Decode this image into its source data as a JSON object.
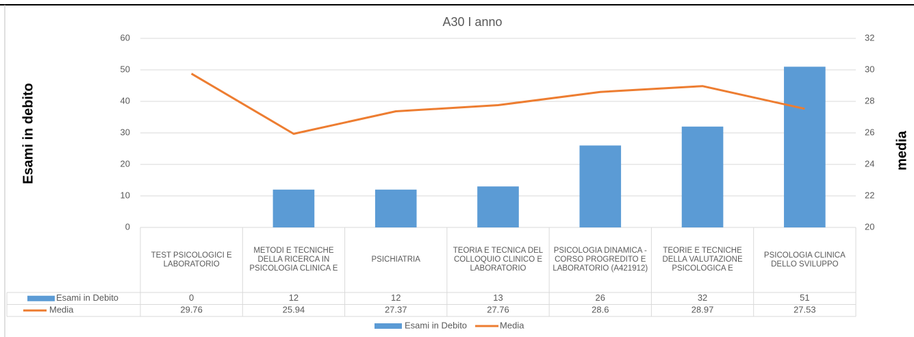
{
  "chart_data": {
    "type": "bar",
    "title": "A30 I anno",
    "ylabel": "Esami in debito",
    "y2label": "media",
    "categories": [
      "TEST PSICOLOGICI E LABORATORIO",
      "METODI E TECNICHE DELLA RICERCA IN PSICOLOGIA CLINICA E",
      "PSICHIATRIA",
      "TEORIA E TECNICA DEL COLLOQUIO CLINICO E LABORATORIO",
      "PSICOLOGIA DINAMICA - CORSO PROGREDITO E LABORATORIO (A421912)",
      "TEORIE E TECNICHE DELLA VALUTAZIONE PSICOLOGICA E",
      "PSICOLOGIA CLINICA DELLO SVILUPPO"
    ],
    "series": [
      {
        "name": "Esami in Debito",
        "type": "bar",
        "color": "#5b9bd5",
        "values": [
          0,
          12,
          12,
          13,
          26,
          32,
          51
        ]
      },
      {
        "name": "Media",
        "type": "line",
        "axis": "y2",
        "color": "#ed7d31",
        "values": [
          29.76,
          25.94,
          27.37,
          27.76,
          28.6,
          28.97,
          27.53
        ]
      }
    ],
    "ylim": [
      0,
      60
    ],
    "yticks": [
      0,
      10,
      20,
      30,
      40,
      50,
      60
    ],
    "y2lim": [
      20,
      32
    ],
    "y2ticks": [
      20,
      22,
      24,
      26,
      28,
      30,
      32
    ],
    "grid": true,
    "legend": "bottom",
    "data_table": true
  }
}
